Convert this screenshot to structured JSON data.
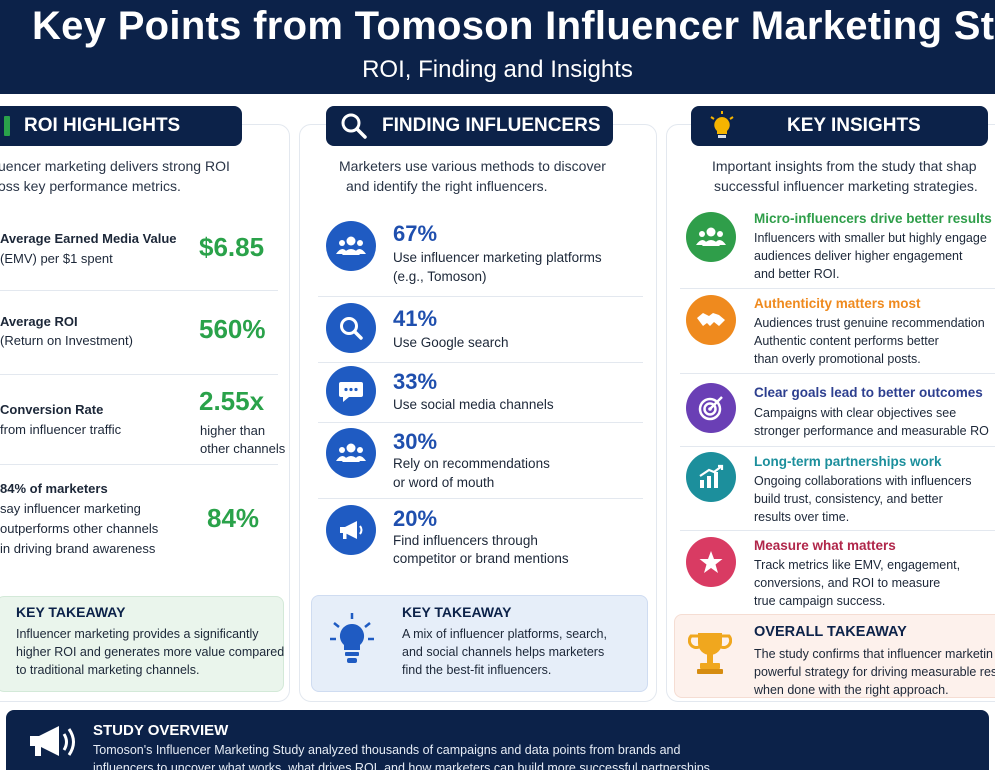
{
  "header": {
    "title": "Key Points from Tomoson Influencer Marketing Stud",
    "subtitle": "ROI, Finding and Insights"
  },
  "roi": {
    "heading": "ROI HIGHLIGHTS",
    "intro_1": "uencer marketing delivers strong ROI",
    "intro_2": "oss key performance metrics.",
    "items": [
      {
        "line1": "Average Earned Media Value",
        "line2": "(EMV) per $1 spent",
        "value": "$6.85",
        "sub1": "",
        "sub2": ""
      },
      {
        "line1": "Average ROI",
        "line2": "(Return on Investment)",
        "value": "560%",
        "sub1": "",
        "sub2": ""
      },
      {
        "line1": "Conversion Rate",
        "line2": "from influencer traffic",
        "value": "2.55x",
        "sub1": "higher than",
        "sub2": "other channels"
      },
      {
        "line1": "84% of marketers",
        "line2": "say influencer marketing",
        "line3": "outperforms other channels",
        "line4": "in driving brand awareness",
        "value": "84%"
      }
    ],
    "takeaway_title": "KEY TAKEAWAY",
    "takeaway_1": "Influencer marketing provides a significantly",
    "takeaway_2": "higher ROI and generates more value compared",
    "takeaway_3": "to traditional marketing channels."
  },
  "finding": {
    "heading": "FINDING INFLUENCERS",
    "intro_1": "Marketers use various methods to discover",
    "intro_2": "and identify the right influencers.",
    "items": [
      {
        "pct": "67%",
        "line1": "Use influencer marketing platforms",
        "line2": "(e.g., Tomoson)",
        "icon": "group-icon"
      },
      {
        "pct": "41%",
        "line1": "Use Google search",
        "line2": "",
        "icon": "search-icon"
      },
      {
        "pct": "33%",
        "line1": "Use social media channels",
        "line2": "",
        "icon": "chat-icon"
      },
      {
        "pct": "30%",
        "line1": "Rely on recommendations",
        "line2": "or word of mouth",
        "icon": "people-icon"
      },
      {
        "pct": "20%",
        "line1": "Find influencers through",
        "line2": "competitor or brand mentions",
        "icon": "megaphone-icon"
      }
    ],
    "takeaway_title": "KEY TAKEAWAY",
    "takeaway_1": "A mix of influencer platforms, search,",
    "takeaway_2": "and social channels helps marketers",
    "takeaway_3": "find the best-fit influencers."
  },
  "insights": {
    "heading": "KEY INSIGHTS",
    "intro_1": "Important insights from the study that shap",
    "intro_2": "successful influencer marketing strategies.",
    "items": [
      {
        "title": "Micro-influencers drive better results",
        "line1": "Influencers with smaller but highly engage",
        "line2": "audiences deliver higher engagement",
        "line3": "and better ROI.",
        "color": "#2f9e4a",
        "icon": "group-icon"
      },
      {
        "title": "Authenticity matters most",
        "line1": "Audiences trust genuine recommendation",
        "line2": "Authentic content performs better",
        "line3": "than overly promotional posts.",
        "color": "#ef8a1e",
        "icon": "handshake-icon"
      },
      {
        "title": "Clear goals lead to better outcomes",
        "line1": "Campaigns with clear objectives see",
        "line2": "stronger performance and measurable RO",
        "line3": "",
        "color": "#6a3fb5",
        "icon": "target-icon"
      },
      {
        "title": "Long-term partnerships work",
        "line1": "Ongoing collaborations with influencers",
        "line2": "build trust, consistency, and better",
        "line3": "results over time.",
        "color": "#1c8f9c",
        "icon": "growth-chart-icon"
      },
      {
        "title": "Measure what matters",
        "line1": "Track metrics like EMV, engagement,",
        "line2": "conversions, and ROI to measure",
        "line3": "true campaign success.",
        "color": "#d93b63",
        "icon": "star-icon"
      }
    ],
    "takeaway_title": "OVERALL TAKEAWAY",
    "takeaway_1": "The study confirms that influencer marketin",
    "takeaway_2": "powerful strategy for driving measurable res",
    "takeaway_3": "when done with the right approach."
  },
  "footer": {
    "title": "STUDY OVERVIEW",
    "line1": "Tomoson's Influencer Marketing Study analyzed thousands of campaigns and data points from brands and",
    "line2": "influencers to uncover what works, what drives ROI, and how marketers can build more successful partnerships."
  },
  "colors": {
    "navy": "#0c2249",
    "green": "#2aa24a",
    "blue": "#1f5bc2"
  }
}
